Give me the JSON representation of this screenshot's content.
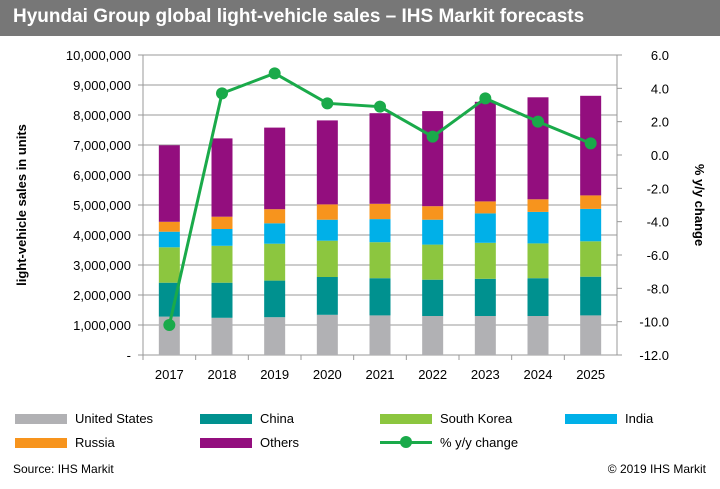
{
  "title": "Hyundai Group global light-vehicle sales – IHS Markit forecasts",
  "source": "Source: IHS Markit",
  "copyright": "© 2019 IHS Markit",
  "chart_data": {
    "type": "bar",
    "stacked": true,
    "title": "Hyundai Group global light-vehicle sales – IHS Markit forecasts",
    "categories": [
      "2017",
      "2018",
      "2019",
      "2020",
      "2021",
      "2022",
      "2023",
      "2024",
      "2025"
    ],
    "ylabel": "light-vehicle sales in units",
    "ylim": [
      0,
      10000000
    ],
    "yticks": [
      "-",
      "1,000,000",
      "2,000,000",
      "3,000,000",
      "4,000,000",
      "5,000,000",
      "6,000,000",
      "7,000,000",
      "8,000,000",
      "9,000,000",
      "10,000,000"
    ],
    "y2label": "% y/y change",
    "y2lim": [
      -12,
      6
    ],
    "y2ticks": [
      "-12.0",
      "-10.0",
      "-8.0",
      "-6.0",
      "-4.0",
      "-2.0",
      "0.0",
      "2.0",
      "4.0",
      "6.0"
    ],
    "grid": true,
    "legend_placement": "bottom",
    "series": [
      {
        "name": "United States",
        "color": "#b1b1b4",
        "values": [
          1280000,
          1240000,
          1260000,
          1340000,
          1320000,
          1300000,
          1300000,
          1300000,
          1320000
        ]
      },
      {
        "name": "China",
        "color": "#00918f",
        "values": [
          1130000,
          1170000,
          1220000,
          1260000,
          1240000,
          1210000,
          1240000,
          1260000,
          1290000
        ]
      },
      {
        "name": "South Korea",
        "color": "#8cc63f",
        "values": [
          1180000,
          1230000,
          1230000,
          1210000,
          1200000,
          1170000,
          1200000,
          1160000,
          1180000
        ]
      },
      {
        "name": "India",
        "color": "#00b0e8",
        "values": [
          520000,
          560000,
          680000,
          700000,
          770000,
          830000,
          980000,
          1050000,
          1080000
        ]
      },
      {
        "name": "Russia",
        "color": "#f7941d",
        "values": [
          330000,
          410000,
          470000,
          510000,
          510000,
          450000,
          400000,
          420000,
          450000
        ]
      },
      {
        "name": "Others",
        "color": "#930e7e",
        "values": [
          2550000,
          2610000,
          2720000,
          2800000,
          3020000,
          3170000,
          3320000,
          3400000,
          3320000
        ]
      }
    ],
    "line_series": {
      "name": "% y/y change",
      "color": "#1aaa4a",
      "axis": "right",
      "values": [
        -10.2,
        3.7,
        4.9,
        3.1,
        2.9,
        1.1,
        3.4,
        2.0,
        0.7
      ]
    }
  }
}
